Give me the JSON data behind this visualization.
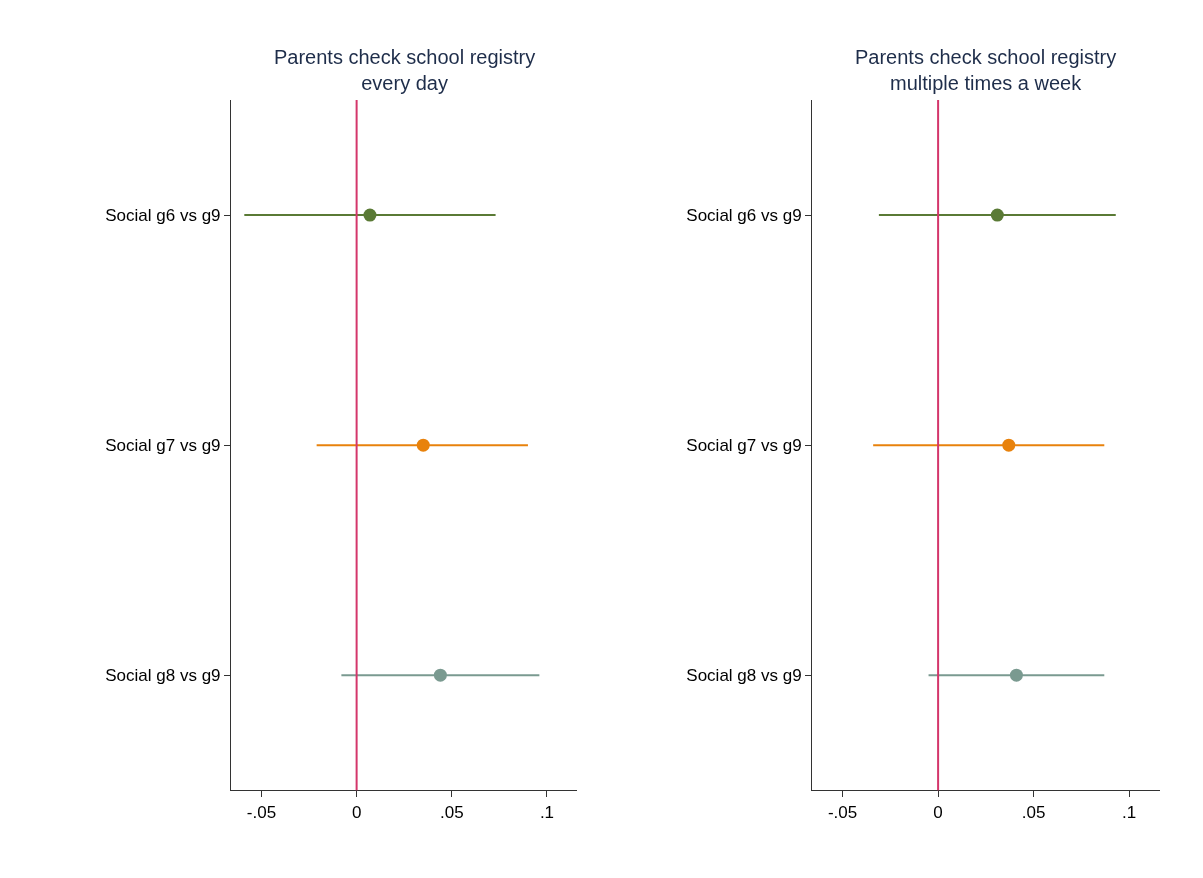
{
  "chart_data": [
    {
      "type": "scatter",
      "orientation": "horizontal",
      "title": "Parents check school registry\nevery day",
      "categories": [
        "Social g6 vs g9",
        "Social g7 vs g9",
        "Social g8 vs g9"
      ],
      "values": [
        0.007,
        0.035,
        0.044
      ],
      "errors": [
        [
          -0.059,
          0.073
        ],
        [
          -0.021,
          0.09
        ],
        [
          -0.008,
          0.096
        ]
      ],
      "colors": [
        "#5a7a35",
        "#e8820c",
        "#7a9a90"
      ],
      "xlim": [
        -0.066,
        0.116
      ],
      "xticks": [
        {
          "value": -0.05,
          "label": "-.05"
        },
        0,
        {
          "value": 0.05,
          "label": ".05"
        },
        {
          "value": 0.1,
          "label": ".1"
        }
      ],
      "ref_lines": [
        {
          "axis": "x",
          "value": 0,
          "color": "#d4366b"
        }
      ],
      "marker": "circle"
    },
    {
      "type": "scatter",
      "orientation": "horizontal",
      "title": "Parents check school registry\nmultiple times a week",
      "categories": [
        "Social g6 vs g9",
        "Social g7 vs g9",
        "Social g8 vs g9"
      ],
      "values": [
        0.031,
        0.037,
        0.041
      ],
      "errors": [
        [
          -0.031,
          0.093
        ],
        [
          -0.034,
          0.087
        ],
        [
          -0.005,
          0.087
        ]
      ],
      "colors": [
        "#5a7a35",
        "#e8820c",
        "#7a9a90"
      ],
      "xlim": [
        -0.066,
        0.116
      ],
      "xticks": [
        {
          "value": -0.05,
          "label": "-.05"
        },
        0,
        {
          "value": 0.05,
          "label": ".05"
        },
        {
          "value": 0.1,
          "label": ".1"
        }
      ],
      "ref_lines": [
        {
          "axis": "x",
          "value": 0,
          "color": "#d4366b"
        }
      ],
      "marker": "circle"
    }
  ]
}
